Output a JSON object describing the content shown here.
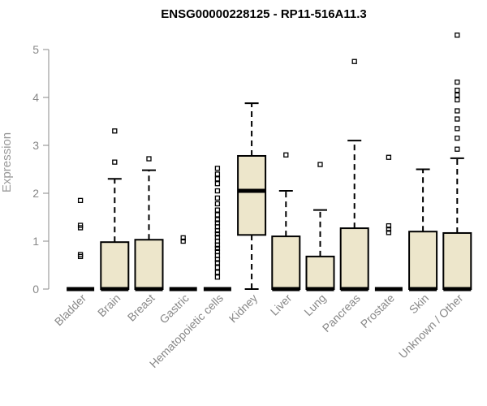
{
  "chart_data": {
    "type": "box",
    "title": "ENSG00000228125 - RP11-516A11.3",
    "ylabel": "Expression",
    "xlabel": "",
    "ylim": [
      0,
      5.3
    ],
    "yticks": [
      0,
      1,
      2,
      3,
      4,
      5
    ],
    "box_fill": "#ede6cb",
    "box_stroke": "#000000",
    "categories": [
      "Bladder",
      "Brain",
      "Breast",
      "Gastric",
      "Hematopoietic cells",
      "Kidney",
      "Liver",
      "Lung",
      "Pancreas",
      "Prostate",
      "Skin",
      "Unknown / Other"
    ],
    "boxes": [
      {
        "q1": 0,
        "median": 0,
        "q3": 0,
        "whisker_low": 0,
        "whisker_high": 0,
        "outliers": [
          0.68,
          0.72,
          1.28,
          1.33,
          1.85
        ]
      },
      {
        "q1": 0,
        "median": 0,
        "q3": 0.98,
        "whisker_low": 0,
        "whisker_high": 2.3,
        "outliers": [
          2.65,
          3.3
        ]
      },
      {
        "q1": 0,
        "median": 0,
        "q3": 1.03,
        "whisker_low": 0,
        "whisker_high": 2.48,
        "outliers": [
          2.72
        ]
      },
      {
        "q1": 0,
        "median": 0,
        "q3": 0,
        "whisker_low": 0,
        "whisker_high": 0,
        "outliers": [
          1.0,
          1.07
        ]
      },
      {
        "q1": 0,
        "median": 0,
        "q3": 0,
        "whisker_low": 0,
        "whisker_high": 0,
        "outliers": [
          0.25,
          0.35,
          0.45,
          0.55,
          0.62,
          0.7,
          0.78,
          0.85,
          0.92,
          1.0,
          1.08,
          1.15,
          1.22,
          1.3,
          1.38,
          1.45,
          1.55,
          1.65,
          1.78,
          1.9,
          2.05,
          2.2,
          2.3,
          2.4,
          2.52
        ]
      },
      {
        "q1": 1.13,
        "median": 2.05,
        "q3": 2.78,
        "whisker_low": 0,
        "whisker_high": 3.88,
        "outliers": []
      },
      {
        "q1": 0,
        "median": 0,
        "q3": 1.1,
        "whisker_low": 0,
        "whisker_high": 2.05,
        "outliers": [
          2.8
        ]
      },
      {
        "q1": 0,
        "median": 0,
        "q3": 0.68,
        "whisker_low": 0,
        "whisker_high": 1.65,
        "outliers": [
          2.6
        ]
      },
      {
        "q1": 0,
        "median": 0,
        "q3": 1.27,
        "whisker_low": 0,
        "whisker_high": 3.1,
        "outliers": [
          4.75
        ]
      },
      {
        "q1": 0,
        "median": 0,
        "q3": 0,
        "whisker_low": 0,
        "whisker_high": 0,
        "outliers": [
          1.18,
          1.25,
          1.32,
          2.75
        ]
      },
      {
        "q1": 0,
        "median": 0,
        "q3": 1.2,
        "whisker_low": 0,
        "whisker_high": 2.5,
        "outliers": []
      },
      {
        "q1": 0,
        "median": 0,
        "q3": 1.17,
        "whisker_low": 0,
        "whisker_high": 2.73,
        "outliers": [
          2.92,
          3.15,
          3.35,
          3.55,
          3.72,
          3.95,
          4.05,
          4.15,
          4.32,
          5.3
        ]
      }
    ]
  }
}
